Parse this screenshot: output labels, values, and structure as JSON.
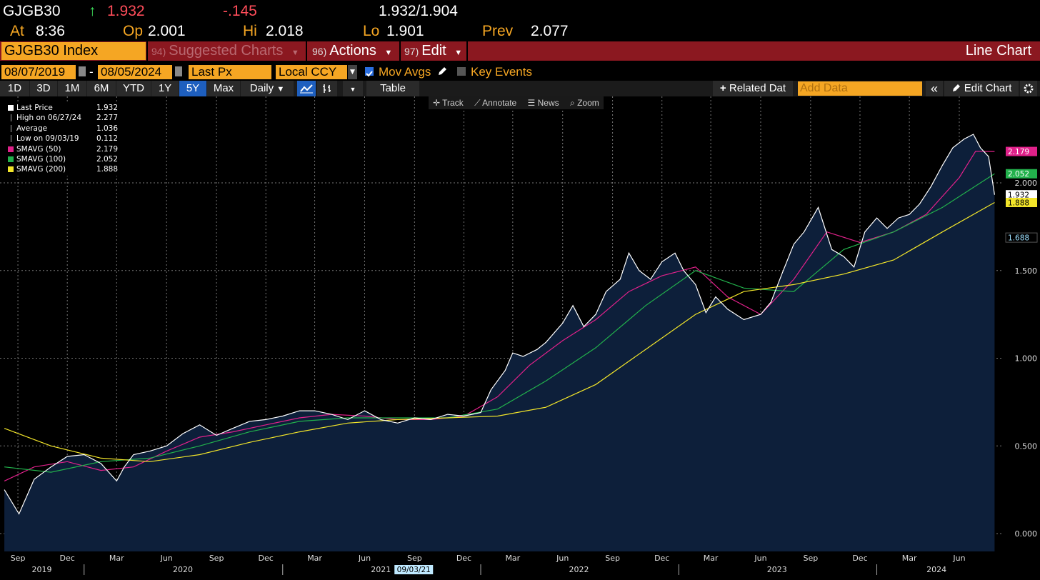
{
  "quote": {
    "ticker": "GJGB30",
    "arrow": "↑",
    "last": "1.932",
    "change": "-.145",
    "bid_ask": "1.932/1.904",
    "at_label": "At",
    "at_value": "8:36",
    "op_label": "Op",
    "op_value": "2.001",
    "hi_label": "Hi",
    "hi_value": "2.018",
    "lo_label": "Lo",
    "lo_value": "1.901",
    "prev_label": "Prev",
    "prev_value": "2.077"
  },
  "menubar": {
    "security": "GJGB30 Index",
    "suggested_num": "94)",
    "suggested_label": "Suggested Charts",
    "actions_num": "96)",
    "actions_label": "Actions",
    "edit_num": "97)",
    "edit_label": "Edit",
    "chart_type": "Line Chart"
  },
  "settings": {
    "start_date": "08/07/2019",
    "dash": "-",
    "end_date": "08/05/2024",
    "field": "Last Px",
    "currency": "Local CCY",
    "mov_avgs": "Mov Avgs",
    "key_events": "Key Events"
  },
  "toolbar": {
    "periods": [
      "1D",
      "3D",
      "1M",
      "6M",
      "YTD",
      "1Y",
      "5Y",
      "Max"
    ],
    "active_period": "5Y",
    "frequency": "Daily",
    "table": "Table",
    "related": "Related Dat",
    "add_data_placeholder": "Add Data",
    "edit_chart": "Edit Chart"
  },
  "chart_tools": {
    "track": "Track",
    "annotate": "Annotate",
    "news": "News",
    "zoom": "Zoom"
  },
  "legend": [
    {
      "name": "Last Price",
      "value": "1.932",
      "color": "#ffffff",
      "marker": "square"
    },
    {
      "name": "High on 06/27/24",
      "value": "2.277",
      "color": "#bbbbbb",
      "marker": "high"
    },
    {
      "name": "Average",
      "value": "1.036",
      "color": "#bbbbbb",
      "marker": "avg"
    },
    {
      "name": "Low on 09/03/19",
      "value": "0.112",
      "color": "#bbbbbb",
      "marker": "low"
    },
    {
      "name": "SMAVG (50)",
      "value": "2.179",
      "color": "#e0218a",
      "marker": "square"
    },
    {
      "name": "SMAVG (100)",
      "value": "2.052",
      "color": "#22b14c",
      "marker": "square"
    },
    {
      "name": "SMAVG (200)",
      "value": "1.888",
      "color": "#f2e52a",
      "marker": "square"
    }
  ],
  "colors": {
    "background": "#000000",
    "area_fill": "#0d1f3a",
    "price_line": "#ffffff",
    "sma50": "#e0218a",
    "sma100": "#22b14c",
    "sma200": "#f2e52a",
    "accent": "#f5a623",
    "menubar": "#8b1820"
  },
  "chart_data": {
    "type": "line",
    "title": "",
    "xlabel": "",
    "ylabel": "",
    "ylim": [
      -0.05,
      2.5
    ],
    "yticks": [
      "0.000",
      "0.500",
      "1.000",
      "1.500",
      "2.000"
    ],
    "x_month_ticks": [
      "Sep",
      "Dec",
      "Mar",
      "Jun",
      "Sep",
      "Dec",
      "Mar",
      "Jun",
      "Sep",
      "Dec",
      "Mar",
      "Jun",
      "Sep",
      "Dec",
      "Mar",
      "Jun",
      "Sep",
      "Dec",
      "Mar",
      "Jun"
    ],
    "x_year_labels": [
      "2019",
      "2020",
      "2021",
      "2022",
      "2023",
      "2024"
    ],
    "cursor_date": "09/03/21",
    "last_value_tags": [
      {
        "value": "2.179",
        "series": "SMAVG (50)"
      },
      {
        "value": "2.052",
        "series": "SMAVG (100)"
      },
      {
        "value": "1.932",
        "series": "Last Price"
      },
      {
        "value": "1.888",
        "series": "SMAVG (200)"
      },
      {
        "value": "1.688",
        "series": ""
      }
    ],
    "series": [
      {
        "name": "Last Price",
        "dates": [
          "2019-08-07",
          "2019-09-03",
          "2019-10-01",
          "2019-11-01",
          "2019-12-01",
          "2020-01-01",
          "2020-02-01",
          "2020-03-01",
          "2020-03-15",
          "2020-04-01",
          "2020-05-01",
          "2020-06-01",
          "2020-07-01",
          "2020-08-01",
          "2020-09-01",
          "2020-10-01",
          "2020-11-01",
          "2020-12-01",
          "2021-01-01",
          "2021-02-01",
          "2021-03-01",
          "2021-04-01",
          "2021-05-01",
          "2021-06-01",
          "2021-07-01",
          "2021-08-01",
          "2021-09-01",
          "2021-10-01",
          "2021-11-01",
          "2021-12-01",
          "2022-01-01",
          "2022-01-20",
          "2022-02-15",
          "2022-03-01",
          "2022-03-20",
          "2022-04-15",
          "2022-05-01",
          "2022-06-01",
          "2022-06-20",
          "2022-07-10",
          "2022-08-01",
          "2022-08-20",
          "2022-09-15",
          "2022-10-01",
          "2022-10-20",
          "2022-11-10",
          "2022-12-01",
          "2022-12-25",
          "2023-01-10",
          "2023-02-01",
          "2023-02-20",
          "2023-03-10",
          "2023-04-01",
          "2023-05-01",
          "2023-06-01",
          "2023-06-20",
          "2023-07-10",
          "2023-08-01",
          "2023-08-20",
          "2023-09-15",
          "2023-10-10",
          "2023-11-01",
          "2023-11-20",
          "2023-12-10",
          "2024-01-01",
          "2024-01-20",
          "2024-02-10",
          "2024-03-01",
          "2024-03-20",
          "2024-04-10",
          "2024-05-01",
          "2024-05-20",
          "2024-06-10",
          "2024-06-27",
          "2024-07-10",
          "2024-07-25",
          "2024-08-05"
        ],
        "values": [
          0.25,
          0.112,
          0.31,
          0.38,
          0.44,
          0.45,
          0.4,
          0.3,
          0.38,
          0.45,
          0.47,
          0.5,
          0.57,
          0.62,
          0.56,
          0.6,
          0.64,
          0.65,
          0.67,
          0.7,
          0.7,
          0.68,
          0.65,
          0.7,
          0.65,
          0.63,
          0.66,
          0.65,
          0.68,
          0.67,
          0.69,
          0.82,
          0.93,
          1.03,
          1.01,
          1.05,
          1.09,
          1.2,
          1.3,
          1.18,
          1.25,
          1.38,
          1.45,
          1.6,
          1.5,
          1.45,
          1.55,
          1.6,
          1.5,
          1.42,
          1.26,
          1.35,
          1.28,
          1.22,
          1.25,
          1.32,
          1.48,
          1.65,
          1.72,
          1.86,
          1.62,
          1.58,
          1.52,
          1.72,
          1.8,
          1.74,
          1.8,
          1.82,
          1.88,
          1.98,
          2.1,
          2.2,
          2.25,
          2.277,
          2.2,
          2.15,
          1.932
        ]
      },
      {
        "name": "SMAVG (50)",
        "dates": [
          "2019-08-07",
          "2019-10-01",
          "2019-12-01",
          "2020-02-01",
          "2020-04-01",
          "2020-06-01",
          "2020-08-01",
          "2020-10-01",
          "2020-12-01",
          "2021-02-01",
          "2021-04-01",
          "2021-06-01",
          "2021-08-01",
          "2021-10-01",
          "2021-12-01",
          "2022-02-01",
          "2022-04-01",
          "2022-06-01",
          "2022-08-01",
          "2022-10-01",
          "2022-12-01",
          "2023-02-01",
          "2023-04-01",
          "2023-06-01",
          "2023-08-01",
          "2023-10-01",
          "2023-12-01",
          "2024-02-01",
          "2024-04-01",
          "2024-06-01",
          "2024-07-01",
          "2024-08-05"
        ],
        "values": [
          0.3,
          0.38,
          0.41,
          0.36,
          0.38,
          0.47,
          0.55,
          0.58,
          0.62,
          0.66,
          0.68,
          0.67,
          0.65,
          0.65,
          0.67,
          0.78,
          0.96,
          1.1,
          1.22,
          1.38,
          1.47,
          1.52,
          1.35,
          1.25,
          1.45,
          1.72,
          1.66,
          1.72,
          1.82,
          2.03,
          2.18,
          2.179
        ]
      },
      {
        "name": "SMAVG (100)",
        "dates": [
          "2019-08-07",
          "2019-11-01",
          "2020-02-01",
          "2020-05-01",
          "2020-08-01",
          "2020-11-01",
          "2021-02-01",
          "2021-05-01",
          "2021-08-01",
          "2021-11-01",
          "2022-02-01",
          "2022-05-01",
          "2022-08-01",
          "2022-11-01",
          "2023-02-01",
          "2023-05-01",
          "2023-08-01",
          "2023-11-01",
          "2024-02-01",
          "2024-05-01",
          "2024-08-05"
        ],
        "values": [
          0.38,
          0.35,
          0.41,
          0.43,
          0.5,
          0.58,
          0.64,
          0.66,
          0.66,
          0.66,
          0.71,
          0.87,
          1.06,
          1.3,
          1.5,
          1.4,
          1.38,
          1.62,
          1.72,
          1.86,
          2.052
        ]
      },
      {
        "name": "SMAVG (200)",
        "dates": [
          "2019-08-07",
          "2019-11-01",
          "2020-02-01",
          "2020-05-01",
          "2020-08-01",
          "2020-11-01",
          "2021-02-01",
          "2021-05-01",
          "2021-08-01",
          "2021-11-01",
          "2022-02-01",
          "2022-05-01",
          "2022-08-01",
          "2022-11-01",
          "2023-02-01",
          "2023-05-01",
          "2023-08-01",
          "2023-11-01",
          "2024-02-01",
          "2024-05-01",
          "2024-08-05"
        ],
        "values": [
          0.6,
          0.5,
          0.43,
          0.41,
          0.45,
          0.52,
          0.58,
          0.63,
          0.65,
          0.66,
          0.67,
          0.72,
          0.85,
          1.05,
          1.25,
          1.38,
          1.42,
          1.48,
          1.56,
          1.72,
          1.888
        ]
      }
    ]
  }
}
